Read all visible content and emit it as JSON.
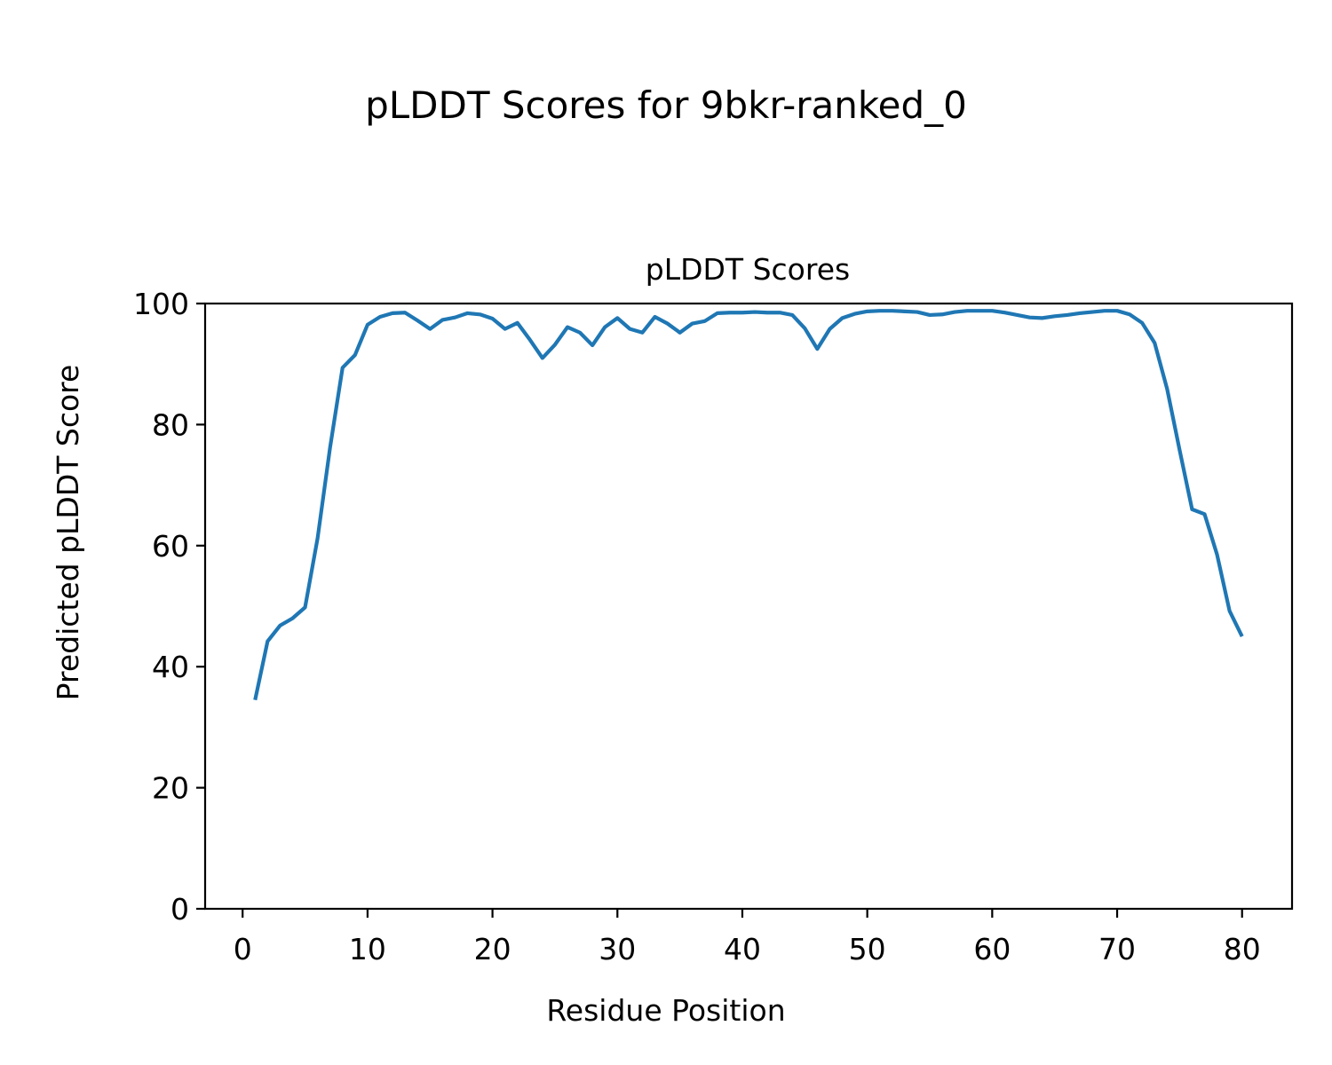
{
  "figure": {
    "suptitle": "pLDDT Scores for 9bkr-ranked_0"
  },
  "chart_data": {
    "type": "line",
    "title": "pLDDT Scores",
    "xlabel": "Residue Position",
    "ylabel": "Predicted pLDDT Score",
    "xlim": [
      -3,
      84
    ],
    "ylim": [
      0,
      100
    ],
    "xticks": [
      0,
      10,
      20,
      30,
      40,
      50,
      60,
      70,
      80
    ],
    "yticks": [
      0,
      20,
      40,
      60,
      80,
      100
    ],
    "grid": false,
    "legend": "none",
    "series": [
      {
        "color": "#1f77b4",
        "x": [
          1,
          2,
          3,
          4,
          5,
          6,
          7,
          8,
          9,
          10,
          11,
          12,
          13,
          14,
          15,
          16,
          17,
          18,
          19,
          20,
          21,
          22,
          23,
          24,
          25,
          26,
          27,
          28,
          29,
          30,
          31,
          32,
          33,
          34,
          35,
          36,
          37,
          38,
          39,
          40,
          41,
          42,
          43,
          44,
          45,
          46,
          47,
          48,
          49,
          50,
          51,
          52,
          53,
          54,
          55,
          56,
          57,
          58,
          59,
          60,
          61,
          62,
          63,
          64,
          65,
          66,
          67,
          68,
          69,
          70,
          71,
          72,
          73,
          74,
          75,
          76,
          77,
          78,
          79,
          80
        ],
        "y": [
          34.5,
          44.2,
          46.8,
          48.0,
          49.8,
          61.2,
          76.2,
          89.4,
          91.5,
          96.5,
          97.8,
          98.4,
          98.5,
          97.2,
          95.8,
          97.3,
          97.7,
          98.4,
          98.2,
          97.5,
          95.8,
          96.8,
          94.0,
          91.0,
          93.2,
          96.1,
          95.2,
          93.1,
          96.1,
          97.6,
          95.8,
          95.2,
          97.8,
          96.7,
          95.2,
          96.7,
          97.1,
          98.4,
          98.5,
          98.5,
          98.6,
          98.5,
          98.5,
          98.1,
          95.9,
          92.5,
          95.8,
          97.6,
          98.3,
          98.7,
          98.8,
          98.8,
          98.7,
          98.6,
          98.1,
          98.2,
          98.6,
          98.8,
          98.8,
          98.8,
          98.5,
          98.1,
          97.7,
          97.6,
          97.9,
          98.1,
          98.4,
          98.6,
          98.8,
          98.8,
          98.2,
          96.8,
          93.5,
          85.9,
          75.8,
          66.0,
          65.2,
          58.5,
          49.2,
          45.0
        ]
      }
    ]
  }
}
